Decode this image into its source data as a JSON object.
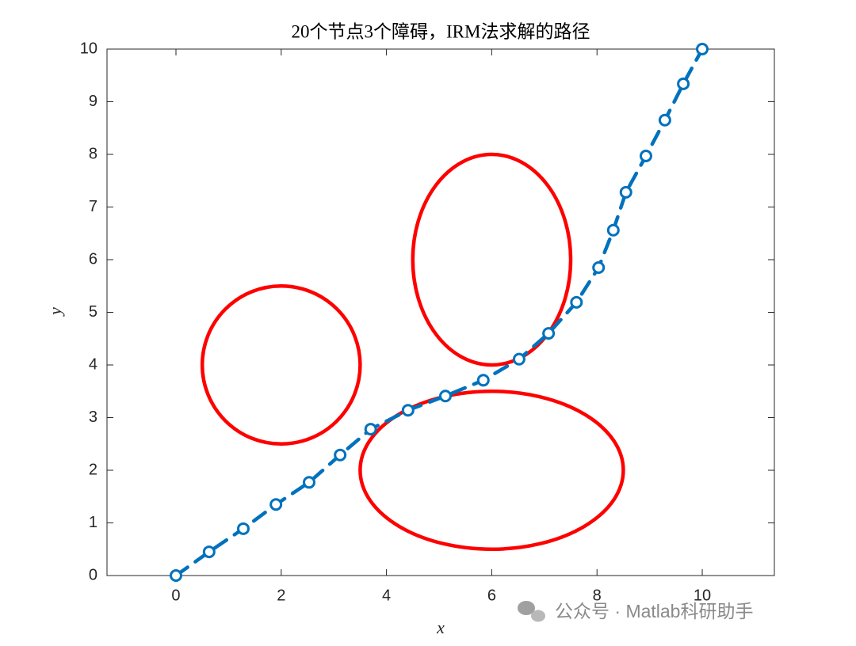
{
  "chart_data": {
    "type": "line",
    "title": "20个节点3个障碍，IRM法求解的路径",
    "xlabel": "x",
    "ylabel": "y",
    "x": [
      0,
      0.63,
      1.28,
      1.9,
      2.53,
      3.12,
      3.7,
      4.41,
      5.12,
      5.84,
      6.52,
      7.08,
      7.61,
      8.03,
      8.31,
      8.55,
      8.93,
      9.29,
      9.64,
      10
    ],
    "series": [
      {
        "color": "#0072bd",
        "values": [
          0,
          0.45,
          0.89,
          1.35,
          1.77,
          2.29,
          2.78,
          3.14,
          3.41,
          3.71,
          4.11,
          4.6,
          5.19,
          5.85,
          6.56,
          7.28,
          7.97,
          8.65,
          9.34,
          10
        ]
      }
    ],
    "obstacles": [
      {
        "cx": 2,
        "cy": 4,
        "rx": 1.5,
        "ry": 1.5
      },
      {
        "cx": 6,
        "cy": 6,
        "rx": 1.5,
        "ry": 2
      },
      {
        "cx": 6,
        "cy": 2,
        "rx": 2.5,
        "ry": 1.5
      }
    ],
    "obstacle_color": "#ff0000",
    "xlim": [
      -1.31,
      11.37
    ],
    "ylim": [
      0,
      10
    ],
    "xticks": [
      0,
      2,
      4,
      6,
      8,
      10
    ],
    "yticks": [
      0,
      1,
      2,
      3,
      4,
      5,
      6,
      7,
      8,
      9,
      10
    ],
    "watermark": "公众号 · Matlab科研助手"
  }
}
